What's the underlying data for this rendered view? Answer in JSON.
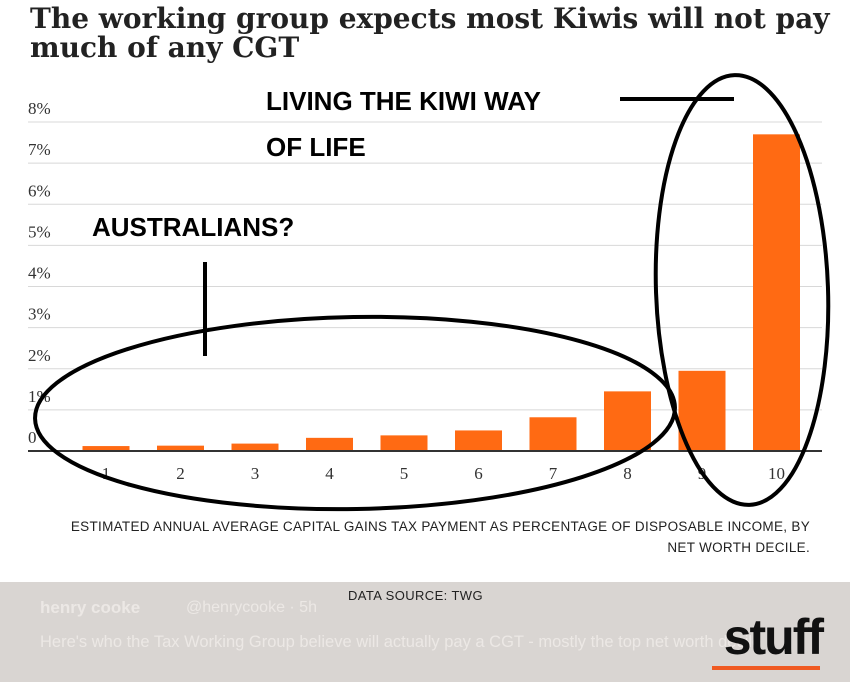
{
  "title": "The working group expects most Kiwis will not pay much of any CGT",
  "chart_data": {
    "type": "bar",
    "categories": [
      "1",
      "2",
      "3",
      "4",
      "5",
      "6",
      "7",
      "8",
      "9",
      "10"
    ],
    "values": [
      0.12,
      0.13,
      0.18,
      0.32,
      0.38,
      0.5,
      0.82,
      1.45,
      1.95,
      7.7
    ],
    "ylim": [
      0,
      8
    ],
    "yticks": [
      "0",
      "1%",
      "2%",
      "3%",
      "4%",
      "5%",
      "6%",
      "7%",
      "8%"
    ],
    "bar_color": "#ff6a13",
    "grid": true,
    "xlabel": "ESTIMATED ANNUAL AVERAGE CAPITAL GAINS TAX PAYMENT AS PERCENTAGE OF DISPOSABLE INCOME, BY NET WORTH DECILE.",
    "annotations": [
      {
        "text": "LIVING THE KIWI WAY",
        "target": "10"
      },
      {
        "text": "OF LIFE",
        "target": "10"
      },
      {
        "text": "AUSTRALIANS?",
        "target": "1-8"
      }
    ]
  },
  "source": "DATA SOURCE: TWG",
  "footer": {
    "name": "henry cooke",
    "handle": "@henrycooke · 5h",
    "tweet": "Here's who the Tax Working Group believe will actually pay a CGT - mostly the top net worth decile",
    "logo": "stuff",
    "accent": "#f05a22"
  }
}
